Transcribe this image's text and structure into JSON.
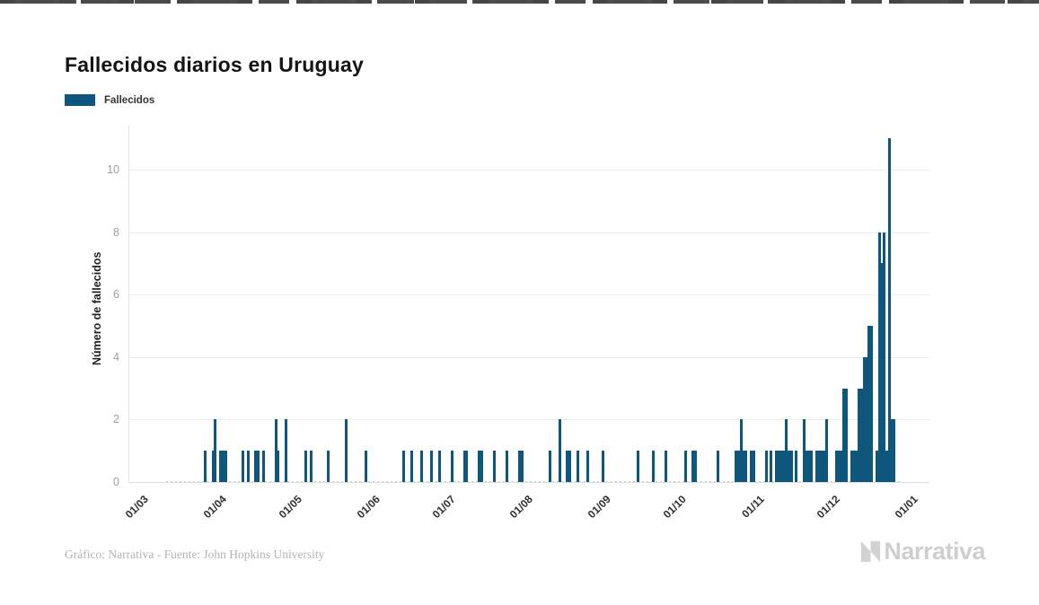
{
  "page": {
    "title": "Fallecidos diarios en Uruguay"
  },
  "legend": {
    "label": "Fallecidos"
  },
  "colors": {
    "bar": "#0e567c",
    "grid": "#ececec",
    "title": "#141414",
    "y_tick": "#9d9d9d",
    "x_tick": "#2e2e2e",
    "footer": "#b4b4b4",
    "logo": "#d2d2d2"
  },
  "footer": {
    "credit": "Gráfico: Narrativa - Fuente: John Hopkins University"
  },
  "branding": {
    "logo_text": "Narrativa",
    "logo_icon": "narrativa-n-icon"
  },
  "chart_data": {
    "type": "bar",
    "title": "Fallecidos diarios en Uruguay",
    "xlabel": "",
    "ylabel": "Número de fallecidos",
    "series_name": "Fallecidos",
    "x_tick_labels": [
      "01/03",
      "01/04",
      "01/05",
      "01/06",
      "01/07",
      "01/08",
      "01/09",
      "01/10",
      "01/11",
      "01/12",
      "01/01"
    ],
    "x_start": "01/03/2020",
    "x_end": "01/01/2021",
    "y_ticks": [
      0,
      2,
      4,
      6,
      8,
      10
    ],
    "ylim": [
      0,
      11.4
    ],
    "grid": true,
    "legend_position": "top-left",
    "bars": [
      {
        "date": "28/03",
        "value": 1
      },
      {
        "date": "31/03",
        "value": 1
      },
      {
        "date": "01/04",
        "value": 2
      },
      {
        "date": "03/04",
        "value": 1
      },
      {
        "date": "04/04",
        "value": 1
      },
      {
        "date": "05/04",
        "value": 1
      },
      {
        "date": "12/04",
        "value": 1
      },
      {
        "date": "14/04",
        "value": 1
      },
      {
        "date": "17/04",
        "value": 1
      },
      {
        "date": "18/04",
        "value": 1
      },
      {
        "date": "20/04",
        "value": 1
      },
      {
        "date": "25/04",
        "value": 2
      },
      {
        "date": "26/04",
        "value": 1
      },
      {
        "date": "29/04",
        "value": 2
      },
      {
        "date": "07/05",
        "value": 1
      },
      {
        "date": "09/05",
        "value": 1
      },
      {
        "date": "16/05",
        "value": 1
      },
      {
        "date": "23/05",
        "value": 2
      },
      {
        "date": "31/05",
        "value": 1
      },
      {
        "date": "15/06",
        "value": 1
      },
      {
        "date": "18/06",
        "value": 1
      },
      {
        "date": "22/06",
        "value": 1
      },
      {
        "date": "26/06",
        "value": 1
      },
      {
        "date": "29/06",
        "value": 1
      },
      {
        "date": "04/07",
        "value": 1
      },
      {
        "date": "09/07",
        "value": 1
      },
      {
        "date": "10/07",
        "value": 1
      },
      {
        "date": "15/07",
        "value": 1
      },
      {
        "date": "16/07",
        "value": 1
      },
      {
        "date": "21/07",
        "value": 1
      },
      {
        "date": "26/07",
        "value": 1
      },
      {
        "date": "31/07",
        "value": 1
      },
      {
        "date": "01/08",
        "value": 1
      },
      {
        "date": "12/08",
        "value": 1
      },
      {
        "date": "16/08",
        "value": 2
      },
      {
        "date": "19/08",
        "value": 1
      },
      {
        "date": "20/08",
        "value": 1
      },
      {
        "date": "23/08",
        "value": 1
      },
      {
        "date": "27/08",
        "value": 1
      },
      {
        "date": "02/09",
        "value": 1
      },
      {
        "date": "16/09",
        "value": 1
      },
      {
        "date": "22/09",
        "value": 1
      },
      {
        "date": "27/09",
        "value": 1
      },
      {
        "date": "05/10",
        "value": 1
      },
      {
        "date": "08/10",
        "value": 1
      },
      {
        "date": "09/10",
        "value": 1
      },
      {
        "date": "18/10",
        "value": 1
      },
      {
        "date": "25/10",
        "value": 1
      },
      {
        "date": "26/10",
        "value": 1
      },
      {
        "date": "27/10",
        "value": 2
      },
      {
        "date": "28/10",
        "value": 1
      },
      {
        "date": "29/10",
        "value": 1
      },
      {
        "date": "31/10",
        "value": 1
      },
      {
        "date": "01/11",
        "value": 1
      },
      {
        "date": "06/11",
        "value": 1
      },
      {
        "date": "08/11",
        "value": 1
      },
      {
        "date": "10/11",
        "value": 1
      },
      {
        "date": "11/11",
        "value": 1
      },
      {
        "date": "12/11",
        "value": 1
      },
      {
        "date": "13/11",
        "value": 1
      },
      {
        "date": "14/11",
        "value": 2
      },
      {
        "date": "15/11",
        "value": 1
      },
      {
        "date": "16/11",
        "value": 1
      },
      {
        "date": "18/11",
        "value": 1
      },
      {
        "date": "21/11",
        "value": 2
      },
      {
        "date": "22/11",
        "value": 1
      },
      {
        "date": "23/11",
        "value": 1
      },
      {
        "date": "24/11",
        "value": 1
      },
      {
        "date": "26/11",
        "value": 1
      },
      {
        "date": "27/11",
        "value": 1
      },
      {
        "date": "28/11",
        "value": 1
      },
      {
        "date": "29/11",
        "value": 1
      },
      {
        "date": "30/11",
        "value": 2
      },
      {
        "date": "04/12",
        "value": 1
      },
      {
        "date": "05/12",
        "value": 1
      },
      {
        "date": "06/12",
        "value": 1
      },
      {
        "date": "07/12",
        "value": 3
      },
      {
        "date": "08/12",
        "value": 3
      },
      {
        "date": "10/12",
        "value": 1
      },
      {
        "date": "11/12",
        "value": 1
      },
      {
        "date": "12/12",
        "value": 1
      },
      {
        "date": "13/12",
        "value": 3
      },
      {
        "date": "14/12",
        "value": 3
      },
      {
        "date": "15/12",
        "value": 4
      },
      {
        "date": "16/12",
        "value": 4
      },
      {
        "date": "17/12",
        "value": 5
      },
      {
        "date": "18/12",
        "value": 5
      },
      {
        "date": "20/12",
        "value": 1
      },
      {
        "date": "21/12",
        "value": 8
      },
      {
        "date": "22/12",
        "value": 7
      },
      {
        "date": "23/12",
        "value": 8
      },
      {
        "date": "24/12",
        "value": 1
      },
      {
        "date": "25/12",
        "value": 11
      },
      {
        "date": "26/12",
        "value": 2
      },
      {
        "date": "27/12",
        "value": 2
      }
    ]
  }
}
